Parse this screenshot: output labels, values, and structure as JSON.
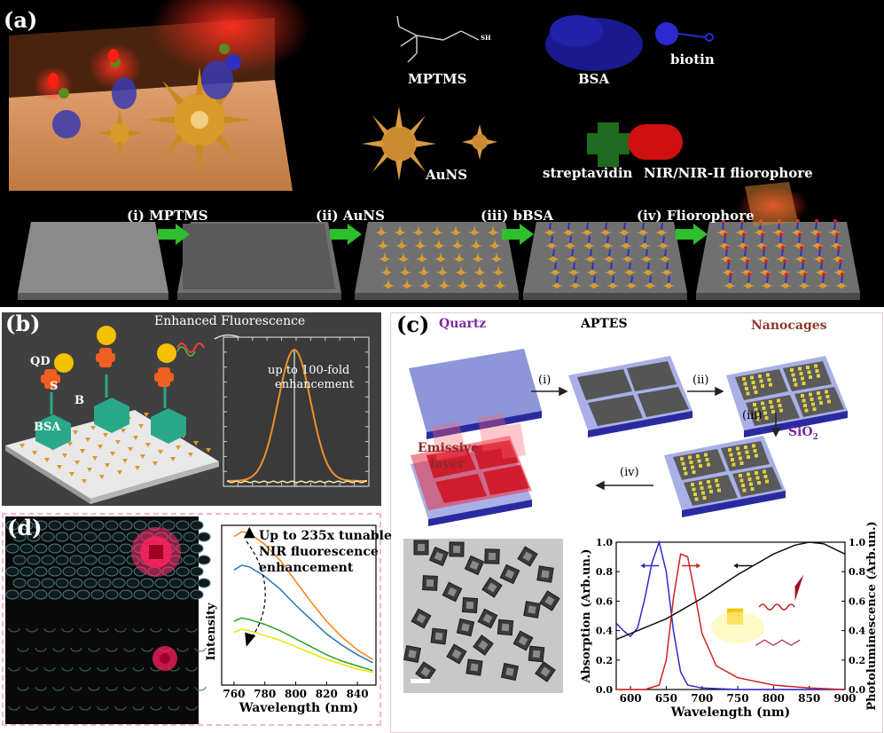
{
  "panel_a": {
    "tag": "(a)",
    "labels": {
      "mptms": "MPTMS",
      "sh": "SH",
      "bsa": "BSA",
      "biotin": "biotin",
      "auns": "AuNS",
      "streptavidin": "streptavidin",
      "fluorophore": "NIR/NIR-II fliorophore"
    },
    "steps": [
      "(i) MPTMS",
      "(ii) AuNS",
      "(iii) bBSA",
      "(iv) Fliorophore"
    ],
    "colors": {
      "background": "#000000",
      "arrow": "#2dbf2d",
      "gold": "#d99a2b",
      "bsa": "#2a2aa8",
      "fluor": "#e01010"
    }
  },
  "panel_b": {
    "tag": "(b)",
    "labels": {
      "enhanced": "Enhanced Fluorescence",
      "qd": "QD",
      "s": "S",
      "b": "B",
      "bsa": "BSA",
      "annotation_line1": "up to 100-fold",
      "annotation_line2": "enhancement"
    },
    "colors": {
      "background": "#404040",
      "curve": "#f0902a",
      "baseline": "#f4e6b0"
    }
  },
  "panel_c": {
    "tag": "(c)",
    "labels": {
      "quartz": "Quartz",
      "aptes": "APTES",
      "nanocages": "Nanocages",
      "sio2": "SiO",
      "sio2_sub": "2",
      "emissive_line1": "Emissive",
      "emissive_line2": "layer"
    },
    "steps": [
      "(i)",
      "(ii)",
      "(iii)",
      "(iv)"
    ],
    "chart_data": {
      "type": "line",
      "xlabel": "Wavelength (nm)",
      "ylabel_left": "Absorption (Arb.un.)",
      "ylabel_right": "Photoluminescence (Arb.un.)",
      "xlim": [
        580,
        900
      ],
      "ylim": [
        0,
        1.0
      ],
      "x_ticks": [
        "600",
        "650",
        "700",
        "750",
        "800",
        "850",
        "900"
      ],
      "y_ticks_left": [
        "0.0",
        "0.2",
        "0.4",
        "0.6",
        "0.8",
        "1.0"
      ],
      "y_ticks_right": [
        "0.0",
        "0.2",
        "0.4",
        "0.6",
        "0.8",
        "1.0"
      ],
      "series": [
        {
          "color": "#2b2bd0",
          "x": [
            580,
            590,
            600,
            610,
            620,
            630,
            640,
            650,
            660,
            670,
            680,
            700,
            750,
            800,
            900
          ],
          "y": [
            0.45,
            0.4,
            0.36,
            0.42,
            0.62,
            0.86,
            1.0,
            0.8,
            0.4,
            0.12,
            0.03,
            0.01,
            0.0,
            0.0,
            0.0
          ]
        },
        {
          "color": "#d02020",
          "x": [
            580,
            620,
            640,
            650,
            660,
            670,
            680,
            690,
            700,
            720,
            750,
            800,
            850,
            900
          ],
          "y": [
            0.0,
            0.0,
            0.03,
            0.2,
            0.62,
            0.92,
            0.9,
            0.65,
            0.38,
            0.16,
            0.08,
            0.03,
            0.01,
            0.0
          ]
        },
        {
          "color": "#101010",
          "x": [
            580,
            600,
            650,
            700,
            750,
            800,
            830,
            850,
            870,
            900
          ],
          "y": [
            0.34,
            0.38,
            0.48,
            0.62,
            0.78,
            0.92,
            0.98,
            1.0,
            0.99,
            0.92
          ]
        }
      ]
    }
  },
  "panel_d": {
    "tag": "(d)",
    "annotation": [
      "Up to 235x tunable",
      "NIR fluorescence",
      "enhancement"
    ],
    "chart_data": {
      "type": "line",
      "xlabel": "Wavelength (nm)",
      "ylabel": "Intensity",
      "xlim": [
        752,
        852
      ],
      "x_ticks": [
        "760",
        "780",
        "800",
        "820",
        "840"
      ],
      "series": [
        {
          "color": "#ff7f0e",
          "x": [
            760,
            765,
            770,
            780,
            790,
            800,
            810,
            820,
            830,
            840,
            850
          ],
          "y": [
            0.93,
            0.96,
            0.95,
            0.88,
            0.78,
            0.65,
            0.52,
            0.4,
            0.3,
            0.22,
            0.16
          ]
        },
        {
          "color": "#1f77b4",
          "x": [
            760,
            765,
            770,
            780,
            790,
            800,
            810,
            820,
            830,
            840,
            850
          ],
          "y": [
            0.72,
            0.75,
            0.74,
            0.68,
            0.6,
            0.5,
            0.41,
            0.32,
            0.25,
            0.19,
            0.14
          ]
        },
        {
          "color": "#2ca02c",
          "x": [
            760,
            765,
            770,
            780,
            790,
            800,
            810,
            820,
            830,
            840,
            850
          ],
          "y": [
            0.4,
            0.42,
            0.41,
            0.38,
            0.34,
            0.29,
            0.24,
            0.19,
            0.15,
            0.12,
            0.09
          ]
        },
        {
          "color": "#e8e800",
          "x": [
            760,
            765,
            770,
            780,
            790,
            800,
            810,
            820,
            830,
            840,
            850
          ],
          "y": [
            0.33,
            0.35,
            0.34,
            0.31,
            0.28,
            0.24,
            0.2,
            0.16,
            0.13,
            0.1,
            0.08
          ]
        }
      ]
    }
  }
}
